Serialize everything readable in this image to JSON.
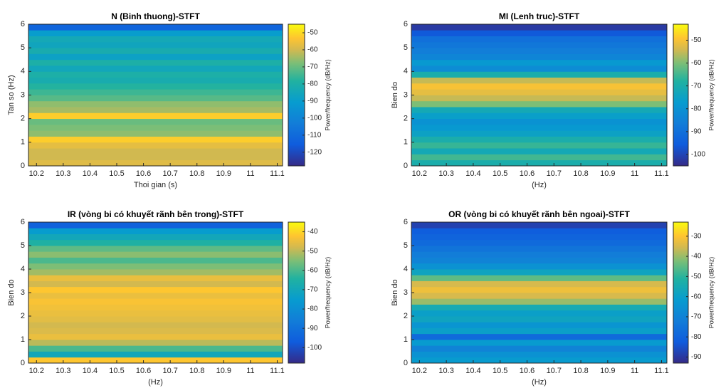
{
  "chart_data": [
    {
      "type": "heatmap",
      "title": "N (Binh thuong)-STFT",
      "xlabel": "Thoi gian (s)",
      "ylabel": "Tan so (Hz)",
      "colorbar_label": "Power/frequency (dB/Hz)",
      "xlim": [
        10.17,
        11.12
      ],
      "xticks": [
        10.2,
        10.3,
        10.4,
        10.5,
        10.6,
        10.7,
        10.8,
        10.9,
        11,
        11.1
      ],
      "ylim": [
        0,
        6
      ],
      "yticks": [
        0,
        1,
        2,
        3,
        4,
        5,
        6
      ],
      "ybins": [
        0,
        0.25,
        0.5,
        0.75,
        1,
        1.25,
        1.5,
        1.75,
        2,
        2.25,
        2.5,
        2.75,
        3,
        3.25,
        3.5,
        3.75,
        4,
        4.25,
        4.5,
        4.75,
        5,
        5.25,
        5.5,
        5.75,
        6
      ],
      "values": [
        -58,
        -60,
        -60,
        -57,
        -52,
        -66,
        -68,
        -70,
        -52,
        -64,
        -66,
        -72,
        -75,
        -78,
        -82,
        -80,
        -85,
        -80,
        -88,
        -82,
        -86,
        -84,
        -90,
        -112
      ],
      "clim": [
        -128,
        -45
      ],
      "cticks": [
        -50,
        -60,
        -70,
        -80,
        -90,
        -100,
        -110,
        -120
      ],
      "colormap": "parula"
    },
    {
      "type": "heatmap",
      "title": "MI (Lenh truc)-STFT",
      "xlabel": "(Hz)",
      "ylabel": "Bien do",
      "colorbar_label": "Power/frequency (dB/Hz)",
      "xlim": [
        10.17,
        11.12
      ],
      "xticks": [
        10.2,
        10.3,
        10.4,
        10.5,
        10.6,
        10.7,
        10.8,
        10.9,
        11,
        11.1
      ],
      "ylim": [
        0,
        6
      ],
      "yticks": [
        0,
        1,
        2,
        3,
        4,
        5,
        6
      ],
      "ybins": [
        0,
        0.25,
        0.5,
        0.75,
        1,
        1.25,
        1.5,
        1.75,
        2,
        2.25,
        2.5,
        2.75,
        3,
        3.25,
        3.5,
        3.75,
        4,
        4.25,
        4.5,
        4.75,
        5,
        5.25,
        5.5,
        5.75,
        6
      ],
      "values": [
        -70,
        -65,
        -72,
        -66,
        -70,
        -75,
        -78,
        -80,
        -76,
        -72,
        -60,
        -55,
        -52,
        -50,
        -55,
        -70,
        -82,
        -78,
        -84,
        -86,
        -88,
        -90,
        -96,
        -102
      ],
      "clim": [
        -105,
        -43
      ],
      "cticks": [
        -50,
        -60,
        -70,
        -80,
        -90,
        -100
      ],
      "colormap": "parula"
    },
    {
      "type": "heatmap",
      "title": "IR (vòng bi có khuyết rãnh bên trong)-STFT",
      "xlabel": "(Hz)",
      "ylabel": "Bien do",
      "colorbar_label": "Power/frequency (dB/Hz)",
      "xlim": [
        10.17,
        11.12
      ],
      "xticks": [
        10.2,
        10.3,
        10.4,
        10.5,
        10.6,
        10.7,
        10.8,
        10.9,
        11,
        11.1
      ],
      "ylim": [
        0,
        6
      ],
      "yticks": [
        0,
        1,
        2,
        3,
        4,
        5,
        6
      ],
      "ybins": [
        0,
        0.25,
        0.5,
        0.75,
        1,
        1.25,
        1.5,
        1.75,
        2,
        2.25,
        2.5,
        2.75,
        3,
        3.25,
        3.5,
        3.75,
        4,
        4.25,
        4.5,
        4.75,
        5,
        5.25,
        5.5,
        5.75,
        6
      ],
      "values": [
        -42,
        -70,
        -60,
        -50,
        -45,
        -47,
        -48,
        -46,
        -45,
        -44,
        -43,
        -45,
        -42,
        -48,
        -45,
        -52,
        -55,
        -60,
        -54,
        -58,
        -65,
        -70,
        -75,
        -95
      ],
      "clim": [
        -108,
        -35
      ],
      "cticks": [
        -40,
        -50,
        -60,
        -70,
        -80,
        -90,
        -100
      ],
      "colormap": "parula"
    },
    {
      "type": "heatmap",
      "title": "OR (vòng bi có khuyết rãnh bên ngoai)-STFT",
      "xlabel": "(Hz)",
      "ylabel": "Bien do",
      "colorbar_label": "Power/frequency (dB/Hz)",
      "xlim": [
        10.17,
        11.12
      ],
      "xticks": [
        10.2,
        10.3,
        10.4,
        10.5,
        10.6,
        10.7,
        10.8,
        10.9,
        11,
        11.1
      ],
      "ylim": [
        0,
        6
      ],
      "yticks": [
        0,
        1,
        2,
        3,
        4,
        5,
        6
      ],
      "ybins": [
        0,
        0.25,
        0.5,
        0.75,
        1,
        1.25,
        1.5,
        1.75,
        2,
        2.25,
        2.5,
        2.75,
        3,
        3.25,
        3.5,
        3.75,
        4,
        4.25,
        4.5,
        4.75,
        5,
        5.25,
        5.5,
        5.75,
        6
      ],
      "values": [
        -62,
        -65,
        -70,
        -62,
        -78,
        -60,
        -64,
        -58,
        -60,
        -55,
        -40,
        -35,
        -32,
        -35,
        -45,
        -58,
        -65,
        -70,
        -72,
        -75,
        -78,
        -80,
        -82,
        -88
      ],
      "clim": [
        -93,
        -23
      ],
      "cticks": [
        -30,
        -40,
        -50,
        -60,
        -70,
        -80,
        -90
      ],
      "colormap": "parula"
    }
  ]
}
